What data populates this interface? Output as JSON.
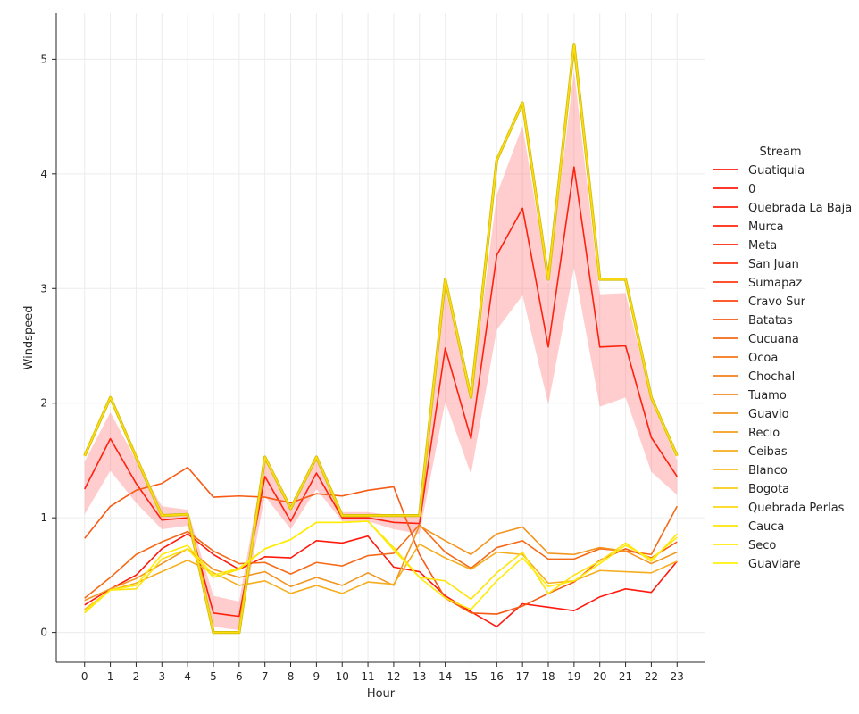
{
  "chart_data": {
    "type": "line",
    "xlabel": "Hour",
    "ylabel": "Windspeed",
    "x": [
      0,
      1,
      2,
      3,
      4,
      5,
      6,
      7,
      8,
      9,
      10,
      11,
      12,
      13,
      14,
      15,
      16,
      17,
      18,
      19,
      20,
      21,
      22,
      23
    ],
    "xlim": [
      -1.1,
      24.1
    ],
    "ylim": [
      -0.26,
      5.4
    ],
    "yticks": [
      0,
      1,
      2,
      3,
      4,
      5
    ],
    "grid": true,
    "legend": {
      "title": "Stream",
      "placement": "right"
    },
    "series": [
      {
        "name": "Guatiquia",
        "color": "#ff1a0d",
        "values": [
          0.24,
          0.38,
          0.5,
          0.73,
          0.86,
          0.68,
          0.55,
          0.66,
          0.65,
          0.8,
          0.78,
          0.84,
          0.57,
          0.53,
          0.32,
          0.18,
          0.05,
          0.25,
          0.22,
          0.19,
          0.31,
          0.38,
          0.35,
          0.62
        ]
      },
      {
        "name": "0",
        "color": "#ff1c0d",
        "values": null
      },
      {
        "name": "Quebrada La Baja",
        "color": "#ff200d",
        "values": [
          1.25,
          1.69,
          1.3,
          0.98,
          1.0,
          0.17,
          0.14,
          1.36,
          0.97,
          1.39,
          1.0,
          1.0,
          0.96,
          0.95,
          2.48,
          1.69,
          3.29,
          3.7,
          2.49,
          4.06,
          2.49,
          2.5,
          1.7,
          1.36
        ]
      },
      {
        "name": "Murca",
        "color": "#ff240d",
        "values": null
      },
      {
        "name": "Meta",
        "color": "#ff280d",
        "values": null
      },
      {
        "name": "San Juan",
        "color": "#ff300d",
        "values": null
      },
      {
        "name": "Sumapaz",
        "color": "#fe380f",
        "values": null
      },
      {
        "name": "Cravo Sur",
        "color": "#fc4511",
        "values": null
      },
      {
        "name": "Batatas",
        "color": "#f75a14",
        "values": [
          0.82,
          1.1,
          1.24,
          1.3,
          1.44,
          1.18,
          1.19,
          1.18,
          1.13,
          1.21,
          1.19,
          1.24,
          1.27,
          0.68,
          0.3,
          0.17,
          0.16,
          0.23,
          0.34,
          0.44,
          0.63,
          0.73,
          0.65,
          0.79
        ]
      },
      {
        "name": "Cucuana",
        "color": "#f56a17",
        "values": [
          0.3,
          0.48,
          0.68,
          0.79,
          0.88,
          0.71,
          0.6,
          0.61,
          0.51,
          0.61,
          0.58,
          0.67,
          0.69,
          0.94,
          0.7,
          0.56,
          0.74,
          0.8,
          0.64,
          0.64,
          0.73,
          0.71,
          0.68,
          1.1
        ]
      },
      {
        "name": "Ocoa",
        "color": "#f4761a",
        "values": null
      },
      {
        "name": "Chochal",
        "color": "#f3801d",
        "values": null
      },
      {
        "name": "Tuamo",
        "color": "#f38a1f",
        "values": null
      },
      {
        "name": "Guavio",
        "color": "#f39521",
        "values": [
          0.28,
          0.38,
          0.47,
          0.6,
          0.73,
          0.55,
          0.48,
          0.53,
          0.4,
          0.48,
          0.41,
          0.52,
          0.41,
          0.93,
          0.8,
          0.68,
          0.86,
          0.92,
          0.69,
          0.68,
          0.74,
          0.71,
          0.6,
          0.7
        ]
      },
      {
        "name": "Recio",
        "color": "#f4a021",
        "values": null
      },
      {
        "name": "Ceibas",
        "color": "#f6ad1f",
        "values": [
          0.2,
          0.37,
          0.43,
          0.53,
          0.63,
          0.52,
          0.41,
          0.45,
          0.34,
          0.41,
          0.34,
          0.44,
          0.42,
          0.77,
          0.65,
          0.55,
          0.7,
          0.68,
          0.43,
          0.45,
          0.54,
          0.53,
          0.52,
          0.62
        ]
      },
      {
        "name": "Blanco",
        "color": "#f8bb1c",
        "values": null
      },
      {
        "name": "Bogota",
        "color": "#face16",
        "values": null
      },
      {
        "name": "Quebrada Perlas",
        "color": "#fcda12",
        "values": [
          1.54,
          2.05,
          1.53,
          1.02,
          1.03,
          0.0,
          0.0,
          1.53,
          1.08,
          1.53,
          1.02,
          1.02,
          1.02,
          1.02,
          3.08,
          2.05,
          4.12,
          4.62,
          3.08,
          5.13,
          3.08,
          3.08,
          2.05,
          1.54
        ]
      },
      {
        "name": "Cauca",
        "color": "#fde40e",
        "values": [
          0.17,
          0.37,
          0.38,
          0.64,
          0.73,
          0.48,
          0.55,
          0.73,
          0.81,
          0.96,
          0.96,
          0.97,
          0.74,
          0.48,
          0.45,
          0.29,
          0.52,
          0.7,
          0.34,
          0.5,
          0.62,
          0.78,
          0.62,
          0.86
        ]
      },
      {
        "name": "Seco",
        "color": "#ffec0a",
        "values": [
          0.19,
          0.37,
          0.41,
          0.68,
          0.76,
          0.5,
          0.56,
          0.73,
          0.81,
          0.96,
          0.96,
          0.97,
          0.72,
          0.48,
          0.3,
          0.2,
          0.45,
          0.65,
          0.4,
          0.45,
          0.6,
          0.76,
          0.64,
          0.83
        ]
      },
      {
        "name": "Guaviare",
        "color": "#fff30a",
        "values": null
      }
    ],
    "bands": [
      {
        "series": "Quebrada La Baja",
        "color": "#ff6f6f",
        "upper": [
          1.49,
          1.92,
          1.5,
          1.1,
          1.07,
          0.32,
          0.27,
          1.55,
          1.09,
          1.55,
          1.05,
          1.05,
          1.02,
          1.02,
          3.0,
          2.04,
          3.82,
          4.42,
          3.04,
          4.9,
          2.95,
          2.96,
          2.02,
          1.5
        ],
        "lower": [
          1.03,
          1.41,
          1.13,
          0.9,
          0.93,
          0.05,
          0.02,
          1.19,
          0.9,
          1.25,
          0.97,
          0.97,
          0.9,
          0.86,
          2.01,
          1.38,
          2.64,
          2.94,
          1.99,
          3.18,
          1.97,
          2.05,
          1.4,
          1.2
        ]
      }
    ]
  }
}
